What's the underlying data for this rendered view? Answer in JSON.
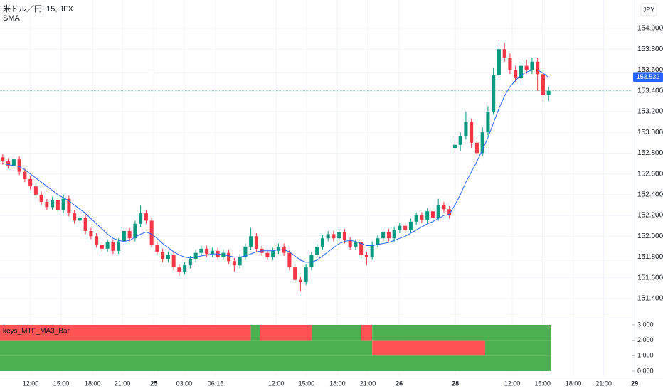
{
  "chart_data": {
    "type": "candlestick",
    "title": "米ドル／円, 15, JFX",
    "indicator_name": "SMA",
    "currency": "JPY",
    "up_color": "#089981",
    "down_color": "#f23645",
    "sma_color": "#2962ff",
    "grid": true,
    "xlim": [
      -0.5,
      119.75
    ],
    "ylim": [
      151.215,
      154.274
    ],
    "yticks": [
      {
        "value": 151.4,
        "label": "151.400"
      },
      {
        "value": 151.6,
        "label": "151.600"
      },
      {
        "value": 151.8,
        "label": "151.800"
      },
      {
        "value": 152,
        "label": "152.000"
      },
      {
        "value": 152.2,
        "label": "152.200"
      },
      {
        "value": 152.4,
        "label": "152.400"
      },
      {
        "value": 152.6,
        "label": "152.600"
      },
      {
        "value": 152.8,
        "label": "152.800"
      },
      {
        "value": 153,
        "label": "153.000"
      },
      {
        "value": 153.2,
        "label": "153.200"
      },
      {
        "value": 153.4,
        "label": "153.400"
      },
      {
        "value": 153.6,
        "label": "153.600"
      },
      {
        "value": 153.8,
        "label": "153.800"
      },
      {
        "value": 154,
        "label": "154.000"
      }
    ],
    "xticks": [
      {
        "value": 5.05,
        "label": "12:00"
      },
      {
        "value": 10.6,
        "label": "15:00"
      },
      {
        "value": 16.3,
        "label": "18:00"
      },
      {
        "value": 21.7,
        "label": "21:00"
      },
      {
        "value": 27.4,
        "label": "25"
      },
      {
        "value": 32.9,
        "label": "03:00"
      },
      {
        "value": 38.6,
        "label": "06:15"
      },
      {
        "value": 49.6,
        "label": "12:00"
      },
      {
        "value": 55.1,
        "label": "15:00"
      },
      {
        "value": 60.7,
        "label": "18:00"
      },
      {
        "value": 66.2,
        "label": "21:00"
      },
      {
        "value": 71.9,
        "label": "26"
      },
      {
        "value": 82.1,
        "label": "28"
      },
      {
        "value": 92.4,
        "label": "12:00"
      },
      {
        "value": 97.9,
        "label": "15:00"
      },
      {
        "value": 103.5,
        "label": "18:00"
      },
      {
        "value": 109.0,
        "label": "21:00"
      },
      {
        "value": 114.6,
        "label": "29"
      }
    ],
    "price_label": 153.532,
    "open": [
      152.76,
      152.72,
      152.68,
      152.74,
      152.62,
      152.55,
      152.48,
      152.4,
      152.33,
      152.28,
      152.35,
      152.25,
      152.36,
      152.22,
      152.15,
      152.18,
      152.05,
      152.0,
      151.92,
      151.88,
      151.94,
      151.86,
      151.95,
      152.05,
      151.98,
      152.12,
      152.22,
      152.15,
      151.92,
      151.85,
      151.78,
      151.82,
      151.7,
      151.66,
      151.72,
      151.78,
      151.84,
      151.88,
      151.83,
      151.86,
      151.8,
      151.84,
      151.76,
      151.72,
      151.8,
      151.9,
      152.0,
      151.88,
      151.84,
      151.8,
      151.86,
      151.9,
      151.84,
      151.7,
      151.58,
      151.56,
      151.7,
      151.82,
      151.9,
      151.98,
      152.02,
      151.98,
      152.04,
      151.96,
      151.9,
      151.94,
      151.82,
      151.8,
      151.92,
      151.98,
      152.04,
      151.98,
      152.06,
      152.1,
      152.06,
      152.14,
      152.2,
      152.16,
      152.24,
      152.18,
      152.3,
      152.26,
      152.85,
      152.88,
      152.96,
      153.1,
      152.9,
      152.8,
      153.0,
      153.2,
      153.55,
      153.8,
      153.72,
      153.6,
      153.52,
      153.64,
      153.6,
      153.68,
      153.56,
      153.36
    ],
    "high": [
      152.79,
      152.75,
      152.77,
      152.77,
      152.65,
      152.58,
      152.51,
      152.43,
      152.36,
      152.38,
      152.38,
      152.4,
      152.39,
      152.25,
      152.21,
      152.21,
      152.08,
      152.03,
      151.95,
      151.97,
      151.97,
      151.98,
      152.08,
      152.08,
      152.15,
      152.3,
      152.25,
      152.18,
      151.95,
      151.88,
      151.85,
      151.85,
      151.73,
      151.75,
      151.81,
      151.87,
      151.91,
      151.91,
      151.89,
      151.89,
      151.87,
      151.87,
      151.79,
      151.83,
      151.93,
      152.08,
      152.03,
      151.91,
      151.87,
      151.89,
      151.93,
      151.93,
      151.87,
      151.73,
      151.61,
      151.73,
      151.85,
      151.93,
      152.01,
      152.05,
      152.05,
      152.07,
      152.07,
      151.99,
      151.97,
      151.97,
      151.85,
      151.95,
      152.01,
      152.07,
      152.07,
      152.09,
      152.13,
      152.13,
      152.17,
      152.23,
      152.23,
      152.27,
      152.27,
      152.36,
      152.33,
      152.29,
      152.95,
      153.0,
      153.2,
      153.13,
      152.95,
      153.05,
      153.25,
      153.62,
      153.88,
      153.86,
      153.76,
      153.64,
      153.68,
      153.7,
      153.72,
      153.72,
      153.6,
      153.44
    ],
    "low": [
      152.69,
      152.65,
      152.65,
      152.59,
      152.52,
      152.45,
      152.37,
      152.3,
      152.25,
      152.25,
      152.22,
      152.22,
      152.19,
      152.12,
      152.12,
      152.02,
      151.97,
      151.89,
      151.85,
      151.85,
      151.83,
      151.83,
      151.92,
      151.95,
      151.95,
      152.09,
      152.12,
      151.89,
      151.82,
      151.75,
      151.75,
      151.67,
      151.62,
      151.63,
      151.69,
      151.75,
      151.81,
      151.8,
      151.8,
      151.77,
      151.77,
      151.73,
      151.66,
      151.69,
      151.77,
      151.87,
      151.85,
      151.81,
      151.77,
      151.77,
      151.83,
      151.81,
      151.67,
      151.55,
      151.47,
      151.53,
      151.67,
      151.79,
      151.87,
      151.95,
      151.95,
      151.95,
      151.93,
      151.87,
      151.87,
      151.79,
      151.72,
      151.77,
      151.89,
      151.95,
      151.95,
      151.95,
      152.03,
      152.03,
      152.03,
      152.11,
      152.13,
      152.13,
      152.15,
      152.15,
      152.23,
      152.17,
      152.8,
      152.82,
      152.93,
      152.85,
      152.75,
      152.77,
      152.97,
      153.17,
      153.52,
      153.68,
      153.56,
      153.48,
      153.49,
      153.56,
      153.56,
      153.4,
      153.3,
      153.3
    ],
    "close": [
      152.72,
      152.68,
      152.74,
      152.62,
      152.55,
      152.48,
      152.4,
      152.33,
      152.28,
      152.35,
      152.25,
      152.36,
      152.22,
      152.15,
      152.18,
      152.05,
      152.0,
      151.92,
      151.88,
      151.94,
      151.86,
      151.95,
      152.05,
      151.98,
      152.12,
      152.22,
      152.15,
      151.92,
      151.85,
      151.78,
      151.82,
      151.7,
      151.66,
      151.72,
      151.78,
      151.84,
      151.88,
      151.83,
      151.86,
      151.8,
      151.84,
      151.76,
      151.72,
      151.8,
      151.9,
      152.0,
      151.88,
      151.84,
      151.8,
      151.86,
      151.9,
      151.84,
      151.7,
      151.58,
      151.56,
      151.7,
      151.82,
      151.9,
      151.98,
      152.02,
      151.98,
      152.04,
      151.96,
      151.9,
      151.94,
      151.82,
      151.8,
      151.92,
      151.98,
      152.04,
      151.98,
      152.06,
      152.1,
      152.06,
      152.14,
      152.2,
      152.16,
      152.24,
      152.18,
      152.3,
      152.26,
      152.2,
      152.88,
      152.96,
      153.1,
      152.9,
      152.8,
      153.0,
      153.2,
      153.55,
      153.8,
      153.72,
      153.6,
      153.52,
      153.64,
      153.6,
      153.68,
      153.56,
      153.36,
      153.4
    ],
    "sma": [
      152.7,
      152.69,
      152.68,
      152.67,
      152.64,
      152.6,
      152.56,
      152.52,
      152.48,
      152.44,
      152.4,
      152.37,
      152.34,
      152.3,
      152.26,
      152.22,
      152.17,
      152.12,
      152.07,
      152.02,
      151.98,
      151.96,
      151.95,
      151.96,
      151.99,
      152.02,
      152.04,
      152.02,
      151.98,
      151.93,
      151.89,
      151.85,
      151.82,
      151.8,
      151.79,
      151.8,
      151.81,
      151.82,
      151.83,
      151.83,
      151.82,
      151.81,
      151.8,
      151.8,
      151.81,
      151.83,
      151.85,
      151.86,
      151.86,
      151.86,
      151.87,
      151.87,
      151.85,
      151.81,
      151.77,
      151.75,
      151.75,
      151.77,
      151.81,
      151.85,
      151.89,
      151.93,
      151.95,
      151.96,
      151.95,
      151.93,
      151.91,
      151.91,
      151.92,
      151.93,
      151.94,
      151.96,
      151.98,
      152.0,
      152.03,
      152.06,
      152.09,
      152.12,
      152.14,
      152.17,
      152.2,
      152.21,
      152.3,
      152.4,
      152.52,
      152.62,
      152.72,
      152.83,
      152.95,
      153.09,
      153.23,
      153.35,
      153.44,
      153.5,
      153.55,
      153.58,
      153.6,
      153.6,
      153.57,
      153.53
    ],
    "indicator": {
      "title": "keys_MTF_MA3_Bar",
      "ylim": [
        -0.37,
        3.46
      ],
      "yticks": [
        {
          "value": 0,
          "label": "0.000"
        },
        {
          "value": 1,
          "label": "1.000"
        },
        {
          "value": 2,
          "label": "2.000"
        },
        {
          "value": 3,
          "label": "3.000"
        }
      ],
      "rows": [
        {
          "from": 2,
          "to": 3,
          "segments": [
            {
              "start": -0.5,
              "end": 45,
              "color": "#ff5252"
            },
            {
              "start": 45,
              "end": 46.7,
              "color": "#4caf50"
            },
            {
              "start": 46.7,
              "end": 56,
              "color": "#ff5252"
            },
            {
              "start": 56,
              "end": 65,
              "color": "#4caf50"
            },
            {
              "start": 65,
              "end": 67,
              "color": "#ff5252"
            },
            {
              "start": 67,
              "end": 99.5,
              "color": "#4caf50"
            }
          ]
        },
        {
          "from": 1,
          "to": 2,
          "segments": [
            {
              "start": -0.5,
              "end": 67,
              "color": "#4caf50"
            },
            {
              "start": 67,
              "end": 87.5,
              "color": "#ff5252"
            },
            {
              "start": 87.5,
              "end": 99.5,
              "color": "#4caf50"
            }
          ]
        },
        {
          "from": 0,
          "to": 1,
          "segments": [
            {
              "start": -0.5,
              "end": 99.5,
              "color": "#4caf50"
            }
          ]
        }
      ]
    }
  }
}
